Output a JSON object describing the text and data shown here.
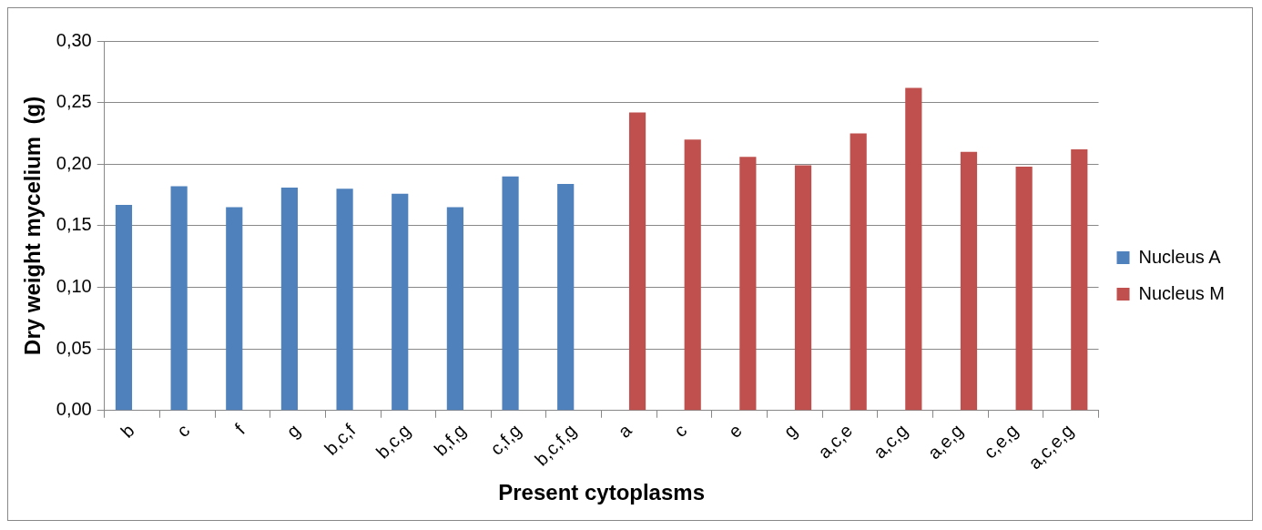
{
  "chart_data": {
    "type": "bar",
    "xlabel": "Present cytoplasms",
    "ylabel": "Dry weight mycelium  (g)",
    "categories": [
      "b",
      "c",
      "f",
      "g",
      "b,c,f",
      "b,c,g",
      "b,f,g",
      "c,f,g",
      "b,c,f,g",
      "a",
      "c",
      "e",
      "g",
      "a,c,e",
      "a,c,g",
      "a,e,g",
      "c,e,g",
      "a,c,e,g"
    ],
    "series": [
      {
        "name": "Nucleus A",
        "color": "#4f81bd",
        "values": [
          0.167,
          0.182,
          0.165,
          0.181,
          0.18,
          0.176,
          0.165,
          0.19,
          0.184,
          null,
          null,
          null,
          null,
          null,
          null,
          null,
          null,
          null
        ]
      },
      {
        "name": "Nucleus M",
        "color": "#c0504d",
        "values": [
          null,
          null,
          null,
          null,
          null,
          null,
          null,
          null,
          null,
          0.242,
          0.22,
          0.206,
          0.199,
          0.225,
          0.262,
          0.21,
          0.198,
          0.212
        ]
      }
    ],
    "ylim": [
      0,
      0.3
    ],
    "yticks": [
      {
        "value": 0,
        "label": "0,00"
      },
      {
        "value": 0.05,
        "label": "0,05"
      },
      {
        "value": 0.1,
        "label": "0,10"
      },
      {
        "value": 0.15,
        "label": "0,15"
      },
      {
        "value": 0.2,
        "label": "0,20"
      },
      {
        "value": 0.25,
        "label": "0,25"
      },
      {
        "value": 0.3,
        "label": "0,30"
      }
    ],
    "grid": "y",
    "legend": "right"
  }
}
